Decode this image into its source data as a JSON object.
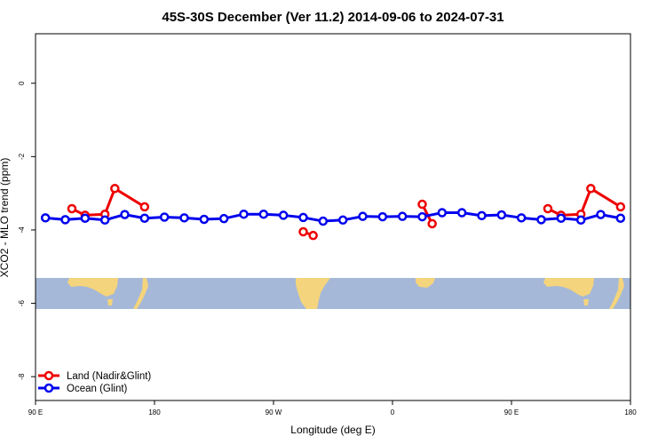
{
  "chart_data": {
    "type": "line",
    "title": "45S-30S December (Ver 11.2)   2014-09-06 to 2024-07-31",
    "xlabel": "Longitude (deg E)",
    "ylabel": "XCO2 - MLO trend (ppm)",
    "xlim": [
      90,
      540
    ],
    "ylim": [
      -8.65,
      1.35
    ],
    "x_ticks": [
      {
        "value": 90,
        "label": "90 E"
      },
      {
        "value": 180,
        "label": "180"
      },
      {
        "value": 270,
        "label": "90 W"
      },
      {
        "value": 360,
        "label": "0"
      },
      {
        "value": 450,
        "label": "90 E"
      },
      {
        "value": 540,
        "label": "180"
      }
    ],
    "y_ticks": [
      {
        "value": 0,
        "label": "0"
      },
      {
        "value": -2,
        "label": "-2"
      },
      {
        "value": -4,
        "label": "-4"
      },
      {
        "value": -6,
        "label": "-6"
      },
      {
        "value": -8,
        "label": "-8"
      }
    ],
    "grid": false,
    "legend_position": "bottom-left",
    "map_strip": {
      "lat_range": [
        "45S",
        "30S"
      ],
      "ocean_color": "#A5B8D8",
      "land_color": "#F4D47C"
    },
    "series": [
      {
        "name": "Land (Nadir&Glint)",
        "color": "#EE0000",
        "segments": [
          [
            [
              117.5,
              -3.42
            ],
            [
              127.5,
              -3.6
            ],
            [
              142.5,
              -3.57
            ],
            [
              150,
              -2.87
            ],
            [
              172.5,
              -3.37
            ]
          ],
          [
            [
              292.5,
              -4.05
            ],
            [
              300,
              -4.15
            ]
          ],
          [
            [
              382.5,
              -3.3
            ],
            [
              390,
              -3.83
            ]
          ],
          [
            [
              477.5,
              -3.42
            ],
            [
              487.5,
              -3.6
            ],
            [
              502.5,
              -3.57
            ],
            [
              510,
              -2.87
            ],
            [
              532.5,
              -3.37
            ]
          ]
        ]
      },
      {
        "name": "Ocean (Glint)",
        "color": "#0000EE",
        "segments": [
          [
            [
              97.5,
              -3.67
            ],
            [
              112.5,
              -3.72
            ],
            [
              127.5,
              -3.68
            ],
            [
              142.5,
              -3.73
            ],
            [
              157.5,
              -3.58
            ],
            [
              172.5,
              -3.68
            ],
            [
              187.5,
              -3.65
            ],
            [
              202.5,
              -3.67
            ],
            [
              217.5,
              -3.71
            ],
            [
              232.5,
              -3.69
            ],
            [
              247.5,
              -3.57
            ],
            [
              262.5,
              -3.57
            ],
            [
              277.5,
              -3.6
            ],
            [
              292.5,
              -3.66
            ],
            [
              307.5,
              -3.76
            ],
            [
              322.5,
              -3.73
            ],
            [
              337.5,
              -3.63
            ],
            [
              352.5,
              -3.64
            ],
            [
              367.5,
              -3.63
            ],
            [
              382.5,
              -3.64
            ],
            [
              397.5,
              -3.53
            ],
            [
              412.5,
              -3.53
            ],
            [
              427.5,
              -3.61
            ],
            [
              442.5,
              -3.59
            ],
            [
              457.5,
              -3.67
            ],
            [
              472.5,
              -3.72
            ],
            [
              487.5,
              -3.68
            ],
            [
              502.5,
              -3.73
            ],
            [
              517.5,
              -3.58
            ],
            [
              532.5,
              -3.68
            ]
          ]
        ]
      }
    ]
  }
}
